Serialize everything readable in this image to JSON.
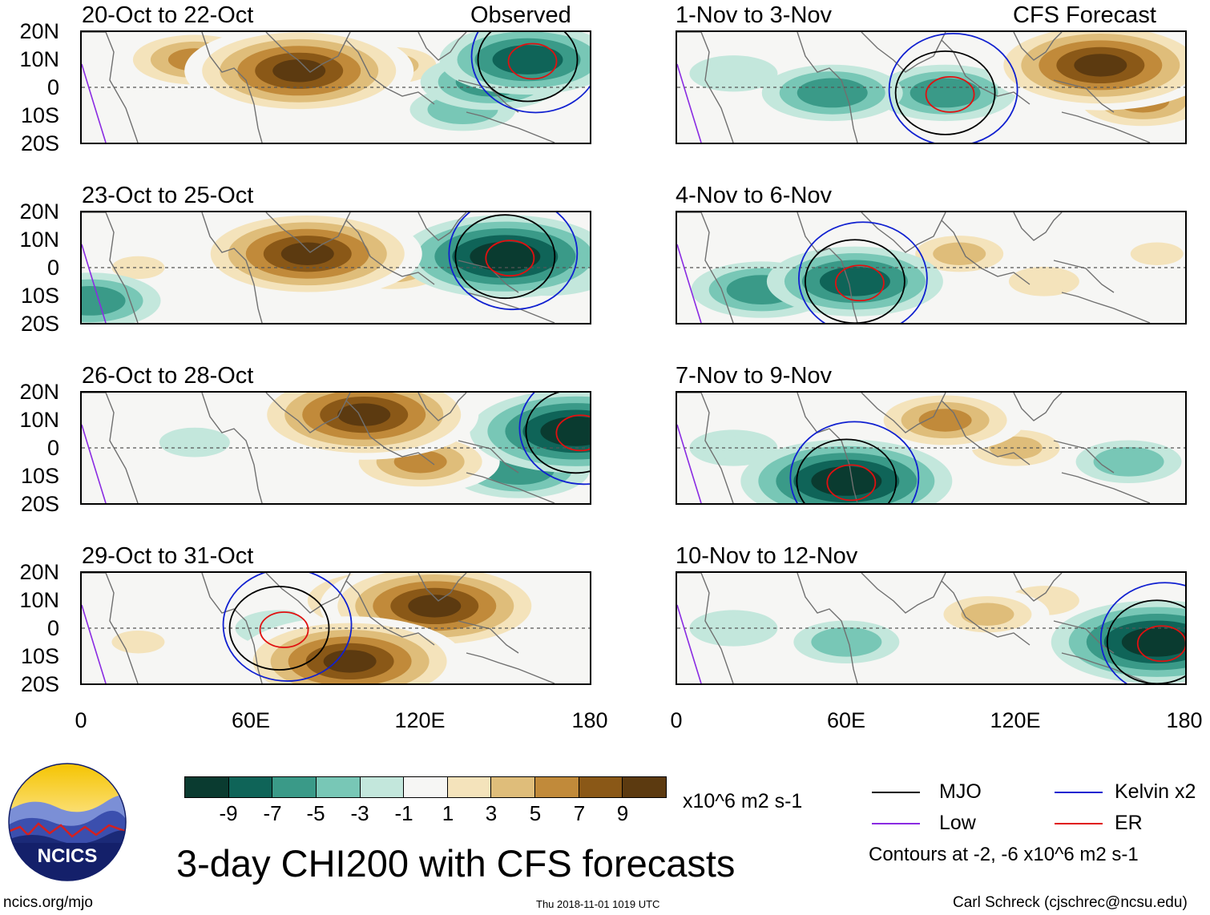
{
  "colors": {
    "levels": [
      "#0a3b30",
      "#0f6458",
      "#3a9a88",
      "#78c7b6",
      "#c3e7dc",
      "#f6f6f4",
      "#f4e3bb",
      "#dfbd7a",
      "#c18a3a",
      "#8a5817",
      "#5c3a10"
    ],
    "mjo": "#000000",
    "kelvin": "#1020d0",
    "low": "#8a2be2",
    "er": "#e01010",
    "coast": "#707070"
  },
  "panels": {
    "observed_label": "Observed",
    "forecast_label": "CFS Forecast",
    "left": [
      {
        "title": "20-Oct to 22-Oct"
      },
      {
        "title": "23-Oct to 25-Oct"
      },
      {
        "title": "26-Oct to 28-Oct"
      },
      {
        "title": "29-Oct to 31-Oct"
      }
    ],
    "right": [
      {
        "title": "1-Nov to 3-Nov"
      },
      {
        "title": "4-Nov to 6-Nov"
      },
      {
        "title": "7-Nov to 9-Nov"
      },
      {
        "title": "10-Nov to 12-Nov"
      }
    ],
    "lat_labels": [
      "20N",
      "10N",
      "0",
      "10S",
      "20S"
    ],
    "lon_labels": [
      "0",
      "60E",
      "120E",
      "180"
    ]
  },
  "chart_data": {
    "type": "heatmap",
    "title": "3-day CHI200 with CFS forecasts",
    "variable": "CHI200",
    "units": "x10^6 m2 s-1",
    "colorbar_levels": [
      -9,
      -7,
      -5,
      -3,
      -1,
      1,
      3,
      5,
      7,
      9
    ],
    "xlim": [
      0,
      180
    ],
    "ylim": [
      -20,
      20
    ],
    "x_ticks": [
      "0",
      "60E",
      "120E",
      "180"
    ],
    "y_ticks": [
      "20N",
      "10N",
      "0",
      "10S",
      "20S"
    ],
    "contour_levels": [
      -2,
      -6
    ],
    "series": [
      {
        "name": "MJO",
        "color": "#000000"
      },
      {
        "name": "Kelvin x2",
        "color": "#1020d0"
      },
      {
        "name": "Low",
        "color": "#8a2be2"
      },
      {
        "name": "ER",
        "color": "#e01010"
      }
    ],
    "panels": [
      {
        "period": "20-Oct to 22-Oct",
        "source": "Observed",
        "blobs": [
          {
            "lon": 77,
            "lat": 6,
            "value": 10
          },
          {
            "lon": 110,
            "lat": 8,
            "value": 4
          },
          {
            "lon": 40,
            "lat": 10,
            "value": 6
          },
          {
            "lon": 145,
            "lat": 2,
            "value": -5
          },
          {
            "lon": 158,
            "lat": 10,
            "value": -7
          },
          {
            "lon": 135,
            "lat": -8,
            "value": -3
          }
        ]
      },
      {
        "period": "23-Oct to 25-Oct",
        "source": "Observed",
        "blobs": [
          {
            "lon": 80,
            "lat": 5,
            "value": 10
          },
          {
            "lon": 110,
            "lat": 0,
            "value": 5
          },
          {
            "lon": 20,
            "lat": 0,
            "value": 2
          },
          {
            "lon": 150,
            "lat": 4,
            "value": -9
          },
          {
            "lon": 165,
            "lat": 0,
            "value": -5
          },
          {
            "lon": 3,
            "lat": -12,
            "value": -5
          }
        ]
      },
      {
        "period": "26-Oct to 28-Oct",
        "source": "Observed",
        "blobs": [
          {
            "lon": 100,
            "lat": 12,
            "value": 10
          },
          {
            "lon": 80,
            "lat": 12,
            "value": 5
          },
          {
            "lon": 120,
            "lat": -5,
            "value": 6
          },
          {
            "lon": 175,
            "lat": 6,
            "value": -9
          },
          {
            "lon": 155,
            "lat": -8,
            "value": -5
          },
          {
            "lon": 40,
            "lat": 2,
            "value": -1
          }
        ]
      },
      {
        "period": "29-Oct to 31-Oct",
        "source": "Observed",
        "blobs": [
          {
            "lon": 125,
            "lat": 8,
            "value": 10
          },
          {
            "lon": 95,
            "lat": -12,
            "value": 10
          },
          {
            "lon": 105,
            "lat": 10,
            "value": 7
          },
          {
            "lon": 70,
            "lat": 0,
            "value": -2
          },
          {
            "lon": 20,
            "lat": -5,
            "value": 2
          }
        ]
      },
      {
        "period": "1-Nov to 3-Nov",
        "source": "CFS Forecast",
        "blobs": [
          {
            "lon": 150,
            "lat": 8,
            "value": 10
          },
          {
            "lon": 165,
            "lat": -5,
            "value": 6
          },
          {
            "lon": 95,
            "lat": -2,
            "value": -5
          },
          {
            "lon": 55,
            "lat": -2,
            "value": -5
          },
          {
            "lon": 20,
            "lat": 5,
            "value": -2
          },
          {
            "lon": 125,
            "lat": 5,
            "value": 3
          }
        ]
      },
      {
        "period": "4-Nov to 6-Nov",
        "source": "CFS Forecast",
        "blobs": [
          {
            "lon": 63,
            "lat": -5,
            "value": -7
          },
          {
            "lon": 30,
            "lat": -8,
            "value": -5
          },
          {
            "lon": 100,
            "lat": 5,
            "value": 4
          },
          {
            "lon": 130,
            "lat": -5,
            "value": 3
          },
          {
            "lon": 170,
            "lat": 5,
            "value": 2
          }
        ]
      },
      {
        "period": "7-Nov to 9-Nov",
        "source": "CFS Forecast",
        "blobs": [
          {
            "lon": 60,
            "lat": -12,
            "value": -9
          },
          {
            "lon": 95,
            "lat": 10,
            "value": 6
          },
          {
            "lon": 120,
            "lat": 0,
            "value": 4
          },
          {
            "lon": 160,
            "lat": -5,
            "value": -3
          },
          {
            "lon": 20,
            "lat": 0,
            "value": -2
          }
        ]
      },
      {
        "period": "10-Nov to 12-Nov",
        "source": "CFS Forecast",
        "blobs": [
          {
            "lon": 170,
            "lat": -5,
            "value": -9
          },
          {
            "lon": 60,
            "lat": -5,
            "value": -3
          },
          {
            "lon": 110,
            "lat": 5,
            "value": 4
          },
          {
            "lon": 130,
            "lat": 10,
            "value": 3
          },
          {
            "lon": 20,
            "lat": 0,
            "value": -2
          }
        ]
      }
    ]
  },
  "colorbar": {
    "tick_labels": [
      "-9",
      "-7",
      "-5",
      "-3",
      "-1",
      "1",
      "3",
      "5",
      "7",
      "9"
    ],
    "units": "x10^6 m2 s-1"
  },
  "title": "3-day CHI200 with CFS forecasts",
  "legend": {
    "mjo": "MJO",
    "kelvin": "Kelvin x2",
    "low": "Low",
    "er": "ER",
    "contours_note": "Contours at -2, -6 x10^6 m2 s-1"
  },
  "logo": {
    "text": "NCICS"
  },
  "footer": {
    "url": "ncics.org/mjo",
    "timestamp": "Thu 2018-11-01 1019 UTC",
    "credit": "Carl Schreck (cjschrec@ncsu.edu)"
  }
}
